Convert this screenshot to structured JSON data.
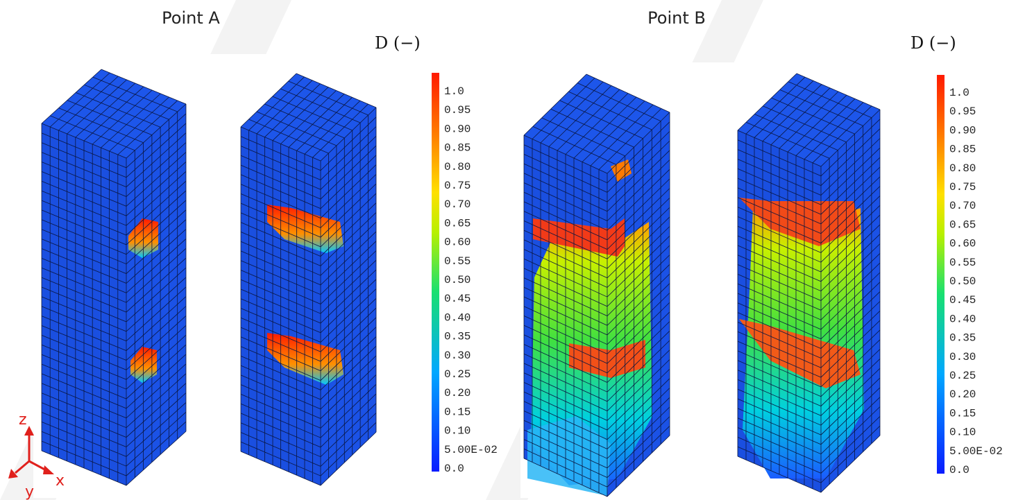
{
  "panels": [
    {
      "title": "Point A",
      "legend_title": "D (−)"
    },
    {
      "title": "Point B",
      "legend_title": "D (−)"
    }
  ],
  "legend_labels": [
    "1.0",
    "0.95",
    "0.90",
    "0.85",
    "0.80",
    "0.75",
    "0.70",
    "0.65",
    "0.60",
    "0.55",
    "0.50",
    "0.45",
    "0.40",
    "0.35",
    "0.30",
    "0.25",
    "0.20",
    "0.15",
    "0.10",
    "5.00E-02",
    "0.0"
  ],
  "axes": {
    "z": "z",
    "y": "y",
    "x": "x"
  }
}
